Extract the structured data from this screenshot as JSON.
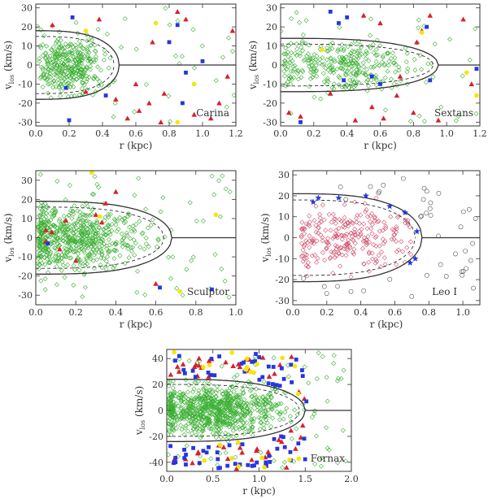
{
  "chart_data": [
    {
      "type": "scatter",
      "label": "Carina",
      "xlabel": "r (kpc)",
      "ylabel_main": "v",
      "ylabel_sub": "los",
      "ylabel_unit": "(km/s)",
      "xlim": [
        0.0,
        1.2
      ],
      "ylim": [
        -32,
        32
      ],
      "xticks": [
        0.0,
        0.2,
        0.4,
        0.6,
        0.8,
        1.0,
        1.2
      ],
      "xtick_labels": [
        "0.0",
        "0.2",
        "0.4",
        "0.6",
        "0.8",
        "1.0",
        "1.2"
      ],
      "yticks": [
        -30,
        -20,
        -10,
        0,
        10,
        20,
        30
      ],
      "ytick_labels": [
        "-30",
        "-20",
        "-10",
        "0",
        "10",
        "20",
        "30"
      ],
      "envelope": {
        "end": 0.5,
        "amp": 18,
        "inner_end": 0.47,
        "inner_amp": 15
      },
      "seed": 11,
      "members": {
        "n": 320,
        "rmin": 0.02,
        "rmax": 0.46,
        "center": 0.2,
        "spread": 0.1,
        "vsig": 7
      },
      "red": [
        [
          0.1,
          21
        ],
        [
          0.38,
          24
        ],
        [
          0.6,
          -10
        ],
        [
          0.48,
          -18
        ],
        [
          0.68,
          -20
        ],
        [
          0.62,
          -24
        ],
        [
          0.7,
          12
        ],
        [
          0.77,
          -15
        ],
        [
          0.9,
          24
        ],
        [
          0.95,
          -26
        ],
        [
          1.05,
          -28
        ],
        [
          1.1,
          -20
        ],
        [
          1.15,
          -6
        ],
        [
          1.18,
          18
        ],
        [
          0.85,
          28
        ],
        [
          0.55,
          -28
        ],
        [
          0.75,
          -30
        ],
        [
          0.3,
          -14
        ]
      ],
      "blue": [
        [
          0.22,
          25
        ],
        [
          0.2,
          -29
        ],
        [
          0.85,
          21
        ],
        [
          0.9,
          -4
        ],
        [
          1.0,
          2
        ],
        [
          0.8,
          12
        ],
        [
          0.18,
          -12
        ],
        [
          0.42,
          -16
        ],
        [
          0.88,
          -20
        ]
      ],
      "yellow": [
        [
          0.3,
          18
        ],
        [
          0.72,
          22
        ],
        [
          0.85,
          -30
        ],
        [
          0.95,
          -10
        ]
      ]
    },
    {
      "type": "scatter",
      "label": "Sextans",
      "xlabel": "r (kpc)",
      "ylabel_main": "v",
      "ylabel_sub": "los",
      "ylabel_unit": "(km/s)",
      "xlim": [
        0.0,
        1.2
      ],
      "ylim": [
        -32,
        32
      ],
      "xticks": [
        0.0,
        0.2,
        0.4,
        0.6,
        0.8,
        1.0,
        1.2
      ],
      "xtick_labels": [
        "0.0",
        "0.2",
        "0.4",
        "0.6",
        "0.8",
        "1.0",
        "1.2"
      ],
      "yticks": [
        -30,
        -20,
        -10,
        0,
        10,
        20,
        30
      ],
      "ytick_labels": [
        "-30",
        "-20",
        "-10",
        "0",
        "10",
        "20",
        "30"
      ],
      "envelope": {
        "end": 0.95,
        "amp": 14,
        "inner_end": 0.92,
        "inner_amp": 11
      },
      "seed": 23,
      "members": {
        "n": 300,
        "rmin": 0.02,
        "rmax": 0.85,
        "center": 0.35,
        "spread": 0.22,
        "vsig": 7
      },
      "red": [
        [
          0.05,
          -25
        ],
        [
          0.12,
          -27
        ],
        [
          0.3,
          -15
        ],
        [
          0.45,
          -29
        ],
        [
          0.55,
          -22
        ],
        [
          0.62,
          -28
        ],
        [
          0.7,
          -16
        ],
        [
          0.8,
          -25
        ],
        [
          0.82,
          12
        ],
        [
          0.85,
          18
        ],
        [
          0.9,
          26
        ],
        [
          0.95,
          -29
        ],
        [
          1.1,
          24
        ],
        [
          1.15,
          -10
        ],
        [
          0.6,
          22
        ],
        [
          0.5,
          26
        ],
        [
          0.72,
          -6
        ]
      ],
      "blue": [
        [
          0.3,
          28
        ],
        [
          0.35,
          22
        ],
        [
          0.4,
          25
        ],
        [
          0.38,
          -8
        ],
        [
          0.9,
          -8
        ],
        [
          0.6,
          -10
        ],
        [
          0.55,
          -6
        ],
        [
          0.88,
          20
        ],
        [
          0.12,
          -30
        ],
        [
          1.18,
          -2
        ]
      ],
      "yellow": [
        [
          0.25,
          8
        ],
        [
          0.85,
          17
        ],
        [
          1.12,
          -4
        ],
        [
          1.18,
          -16
        ]
      ]
    },
    {
      "type": "scatter",
      "label": "Sculptor",
      "xlabel": "r (kpc)",
      "ylabel_main": "v",
      "ylabel_sub": "los",
      "ylabel_unit": "(km/s)",
      "xlim": [
        0.0,
        1.0
      ],
      "ylim": [
        -35,
        35
      ],
      "xticks": [
        0.0,
        0.2,
        0.4,
        0.6,
        0.8,
        1.0
      ],
      "xtick_labels": [
        "0.0",
        "0.2",
        "0.4",
        "0.6",
        "0.8",
        "1.0"
      ],
      "yticks": [
        -30,
        -20,
        -10,
        0,
        10,
        20,
        30
      ],
      "ytick_labels": [
        "-30",
        "-20",
        "-10",
        "0",
        "10",
        "20",
        "30"
      ],
      "envelope": {
        "end": 0.68,
        "amp": 19,
        "inner_end": 0.64,
        "inner_amp": 16
      },
      "seed": 37,
      "members": {
        "n": 560,
        "rmin": 0.01,
        "rmax": 0.95,
        "center": 0.2,
        "spread": 0.16,
        "vsig": 8
      },
      "red": [
        [
          0.05,
          -2
        ],
        [
          0.08,
          3
        ],
        [
          0.12,
          -6
        ],
        [
          0.15,
          9
        ],
        [
          0.3,
          12
        ],
        [
          0.35,
          18
        ],
        [
          0.4,
          24
        ],
        [
          0.33,
          8
        ],
        [
          0.05,
          4
        ],
        [
          0.6,
          -24
        ],
        [
          0.2,
          -12
        ]
      ],
      "blue": [
        [
          0.06,
          -3
        ],
        [
          0.88,
          -27
        ],
        [
          0.62,
          -26
        ]
      ],
      "yellow": [
        [
          0.28,
          34
        ],
        [
          0.32,
          11
        ],
        [
          0.72,
          -28
        ],
        [
          0.9,
          12
        ]
      ]
    },
    {
      "type": "scatter",
      "label": "Leo I",
      "xlabel": "r (kpc)",
      "ylabel_main": "v",
      "ylabel_sub": "los",
      "ylabel_unit": "(km/s)",
      "xlim": [
        0.0,
        1.1
      ],
      "ylim": [
        -32,
        32
      ],
      "xticks": [
        0.0,
        0.2,
        0.4,
        0.6,
        0.8,
        1.0
      ],
      "xtick_labels": [
        "0.0",
        "0.2",
        "0.4",
        "0.6",
        "0.8",
        "1.0"
      ],
      "yticks": [
        -30,
        -20,
        -10,
        0,
        10,
        20,
        30
      ],
      "ytick_labels": [
        "-30",
        "-20",
        "-10",
        "0",
        "10",
        "20",
        "30"
      ],
      "envelope": {
        "end": 0.76,
        "amp": 21,
        "inner_end": 0.72,
        "inner_amp": 18
      },
      "seed": 51,
      "members": {
        "n": 250,
        "rmin": 0.05,
        "rmax": 0.7,
        "center": 0.35,
        "spread": 0.2,
        "vsig": 8
      },
      "red": [],
      "blue": [],
      "yellow": [],
      "stars": [
        [
          0.12,
          17
        ],
        [
          0.15,
          19
        ],
        [
          0.27,
          19
        ],
        [
          0.43,
          20
        ],
        [
          0.57,
          15
        ],
        [
          0.66,
          12
        ],
        [
          0.69,
          -12
        ],
        [
          0.72,
          -10
        ],
        [
          0.73,
          3
        ]
      ],
      "nonmembers": {
        "n": 42
      }
    },
    {
      "type": "scatter",
      "label": "Fornax",
      "xlabel": "r (kpc)",
      "ylabel_main": "v",
      "ylabel_sub": "los",
      "ylabel_unit": "(km/s)",
      "xlim": [
        0.0,
        2.0
      ],
      "ylim": [
        -47,
        47
      ],
      "xticks": [
        0.0,
        0.5,
        1.0,
        1.5,
        2.0
      ],
      "xtick_labels": [
        "0.0",
        "0.5",
        "1.0",
        "1.5",
        "2.0"
      ],
      "yticks": [
        -40,
        -20,
        0,
        20,
        40
      ],
      "ytick_labels": [
        "-40",
        "-20",
        "0",
        "20",
        "40"
      ],
      "envelope": {
        "end": 1.5,
        "amp": 24,
        "inner_end": 1.44,
        "inner_amp": 20
      },
      "seed": 77,
      "members": {
        "n": 760,
        "rmin": 0.02,
        "rmax": 1.55,
        "center": 0.5,
        "spread": 0.35,
        "vsig": 9
      },
      "random_red": 55,
      "random_blue": 75,
      "random_yellow": 22
    }
  ]
}
